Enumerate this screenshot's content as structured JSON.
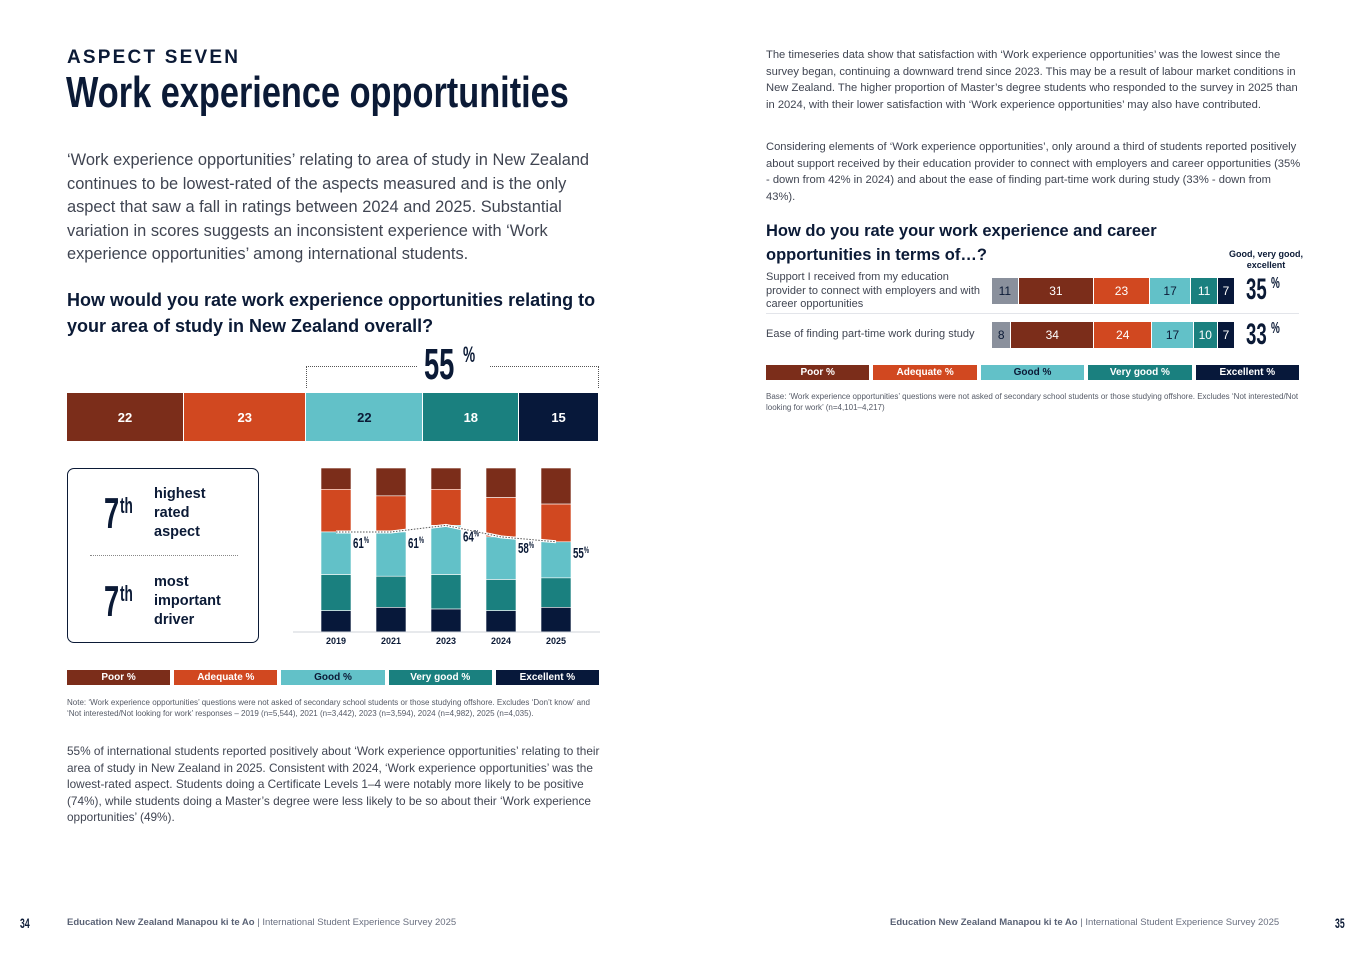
{
  "left_page": {
    "eyebrow": "ASPECT SEVEN",
    "title": "Work experience opportunities",
    "intro": "‘Work experience opportunities’ relating to area of study in New Zealand continues to be lowest-rated of the aspects measured and is the only aspect that saw a fall in ratings between 2024 and 2025. Substantial variation in scores suggests an inconsistent experience with ‘Work experience opportunities’ among international students.",
    "question": "How would you rate work experience opportunities relating to your area of study in New Zealand overall?",
    "rank_box": {
      "items": [
        {
          "rank": "7",
          "suffix": "th",
          "lines": [
            "highest",
            "rated",
            "aspect"
          ]
        },
        {
          "rank": "7",
          "suffix": "th",
          "lines": [
            "most",
            "important",
            "driver"
          ]
        }
      ]
    },
    "note": "Note: ‘Work experience opportunities’ questions were not asked of secondary school students or those studying offshore. Excludes ‘Don’t know’ and ‘Not interested/Not looking for work’ responses – 2019 (n=5,544), 2021 (n=3,442), 2023 (n=3,594), 2024 (n=4,982), 2025 (n=4,035).",
    "body": "55% of international students reported positively about ‘Work experience opportunities’ relating to their area of study in New Zealand in 2025. Consistent with 2024, ‘Work experience opportunities’ was the lowest-rated aspect. Students doing a Certificate Levels 1–4 were notably more likely to be positive (74%), while students doing a Master’s degree were less likely to be so about their ‘Work experience opportunities’ (49%).",
    "page_number": "34",
    "footer_org": "Education New Zealand Manapou ki te Ao",
    "footer_sep": "|",
    "footer_pub": "International Student Experience Survey 2025"
  },
  "right_page": {
    "para1": "The timeseries data show that satisfaction with ‘Work experience opportunities’ was the lowest since the survey began, continuing a downward trend since 2023. This may be a result of labour market conditions in New Zealand. The higher proportion of Master’s degree students who responded to the survey in 2025 than in 2024, with their lower satisfaction with ‘Work experience opportunities’ may also have contributed.",
    "para2": "Considering elements of ‘Work experience opportunities’, only around a third of students reported positively about support received by their education provider to connect with employers and career opportunities (35% - down from 42% in 2024) and about the ease of finding part-time work during study (33% - down from 43%).",
    "question": "How do you rate your work experience and career opportunities in terms of…?",
    "summary_header": "Good, very good, excellent",
    "note": "Base: ‘Work experience opportunities’ questions were not asked of secondary school students or those studying offshore. Excludes ‘Not interested/Not looking for work’ (n=4,101–4,217)",
    "page_number": "35",
    "footer_org": "Education New Zealand Manapou ki te Ao",
    "footer_sep": "|",
    "footer_pub": "International Student Experience Survey 2025"
  },
  "colors": {
    "poor": "#7b2d1a",
    "adequate": "#d14820",
    "good": "#62c1c8",
    "very_good": "#1a807f",
    "excellent": "#07183a",
    "unlabeled": "#8a909c",
    "text_dark": "#0b1a36"
  },
  "legend": [
    "Poor %",
    "Adequate %",
    "Good %",
    "Very good %",
    "Excellent %"
  ],
  "chart_data": [
    {
      "type": "bar",
      "orientation": "horizontal-stacked-100",
      "title": "How would you rate work experience opportunities relating to your area of study in New Zealand overall?",
      "categories": [
        "Poor",
        "Adequate",
        "Good",
        "Very good",
        "Excellent"
      ],
      "values": [
        22,
        23,
        22,
        18,
        15
      ],
      "annotation": {
        "label": "55",
        "suffix": "%",
        "spans": [
          "Good",
          "Very good",
          "Excellent"
        ]
      }
    },
    {
      "type": "bar",
      "orientation": "vertical-stacked-100",
      "x": [
        "2019",
        "2021",
        "2023",
        "2024",
        "2025"
      ],
      "series": [
        {
          "name": "Poor %",
          "values": [
            13,
            17,
            13,
            18,
            22
          ]
        },
        {
          "name": "Adequate %",
          "values": [
            26,
            22,
            22,
            24,
            23
          ]
        },
        {
          "name": "Good %",
          "values": [
            26,
            27,
            30,
            26,
            22
          ]
        },
        {
          "name": "Very good %",
          "values": [
            22,
            19,
            21,
            19,
            18
          ]
        },
        {
          "name": "Excellent %",
          "values": [
            13,
            15,
            14,
            13,
            15
          ]
        }
      ],
      "positive_labels": [
        "61",
        "61",
        "64",
        "58",
        "55"
      ],
      "positive_suffix": "%",
      "ylim": [
        0,
        100
      ],
      "grid": false,
      "legend": "bottom"
    },
    {
      "type": "bar",
      "orientation": "horizontal-stacked-100",
      "title": "How do you rate your work experience and career opportunities in terms of…?",
      "categories": [
        "Support I received from my education provider to connect with employers and with career opportunities",
        "Ease of finding part-time work during study"
      ],
      "series": [
        {
          "name": "Unlabeled",
          "values": [
            11,
            8
          ]
        },
        {
          "name": "Poor %",
          "values": [
            31,
            34
          ]
        },
        {
          "name": "Adequate %",
          "values": [
            23,
            24
          ]
        },
        {
          "name": "Good %",
          "values": [
            17,
            17
          ]
        },
        {
          "name": "Very good %",
          "values": [
            11,
            10
          ]
        },
        {
          "name": "Excellent %",
          "values": [
            7,
            7
          ]
        }
      ],
      "summary": {
        "label": "Good, very good, excellent",
        "values": [
          "35",
          "33"
        ],
        "suffix": "%"
      },
      "legend": "bottom"
    }
  ]
}
